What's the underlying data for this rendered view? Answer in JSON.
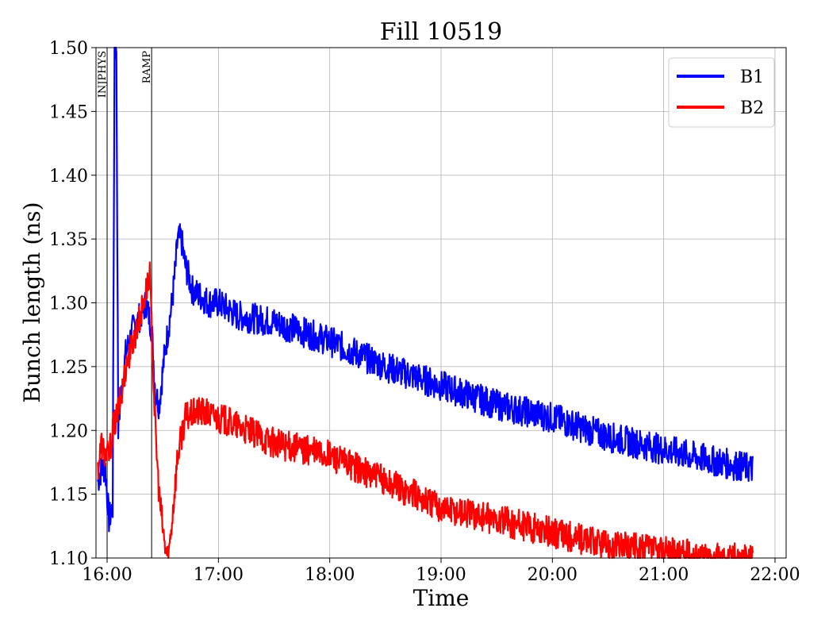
{
  "chart_data": {
    "type": "line",
    "title": "Fill 10519",
    "xlabel": "Time",
    "ylabel": "Bunch length (ns)",
    "xlim": [
      "15:54",
      "22:06"
    ],
    "ylim": [
      1.1,
      1.5
    ],
    "grid": true,
    "legend_position": "top-right",
    "xticks": [
      "16:00",
      "17:00",
      "18:00",
      "19:00",
      "20:00",
      "21:00",
      "22:00"
    ],
    "yticks": [
      1.1,
      1.15,
      1.2,
      1.25,
      1.3,
      1.35,
      1.4,
      1.45,
      1.5
    ],
    "ytick_labels": [
      "1.10",
      "1.15",
      "1.20",
      "1.25",
      "1.30",
      "1.35",
      "1.40",
      "1.45",
      "1.50"
    ],
    "annotations": [
      {
        "label": "INJPHYS",
        "x": "16:00"
      },
      {
        "label": "RAMP",
        "x": "16:24"
      }
    ],
    "series": [
      {
        "name": "B1",
        "color": "#0000ff",
        "noise": 0.012,
        "x": [
          "15:55",
          "15:57",
          "15:59",
          "16:01",
          "16:03",
          "16:04",
          "16:05",
          "16:06",
          "16:07",
          "16:08",
          "16:10",
          "16:14",
          "16:18",
          "16:21",
          "16:24",
          "16:26",
          "16:28",
          "16:31",
          "16:35",
          "16:37",
          "16:38",
          "16:40",
          "16:42",
          "16:46",
          "16:55",
          "17:00",
          "17:10",
          "17:30",
          "18:00",
          "18:30",
          "19:00",
          "19:30",
          "20:00",
          "20:30",
          "21:00",
          "21:30",
          "21:48"
        ],
        "y": [
          1.16,
          1.17,
          1.17,
          1.13,
          1.14,
          1.5,
          1.5,
          1.2,
          1.22,
          1.235,
          1.26,
          1.28,
          1.29,
          1.3,
          1.28,
          1.23,
          1.22,
          1.26,
          1.3,
          1.33,
          1.35,
          1.35,
          1.33,
          1.31,
          1.3,
          1.3,
          1.29,
          1.285,
          1.27,
          1.25,
          1.235,
          1.22,
          1.21,
          1.195,
          1.185,
          1.175,
          1.17
        ]
      },
      {
        "name": "B2",
        "color": "#ff0000",
        "noise": 0.012,
        "x": [
          "15:55",
          "15:57",
          "15:59",
          "16:01",
          "16:03",
          "16:05",
          "16:08",
          "16:10",
          "16:14",
          "16:18",
          "16:21",
          "16:23",
          "16:24",
          "16:26",
          "16:28",
          "16:31",
          "16:33",
          "16:35",
          "16:38",
          "16:42",
          "16:50",
          "17:00",
          "17:30",
          "18:00",
          "18:30",
          "19:00",
          "19:30",
          "20:00",
          "20:30",
          "21:00",
          "21:30",
          "21:48"
        ],
        "y": [
          1.17,
          1.19,
          1.18,
          1.18,
          1.2,
          1.21,
          1.23,
          1.25,
          1.27,
          1.29,
          1.31,
          1.32,
          1.28,
          1.2,
          1.15,
          1.11,
          1.1,
          1.13,
          1.18,
          1.21,
          1.215,
          1.21,
          1.19,
          1.18,
          1.16,
          1.14,
          1.13,
          1.12,
          1.11,
          1.105,
          1.1,
          1.1
        ]
      }
    ]
  }
}
